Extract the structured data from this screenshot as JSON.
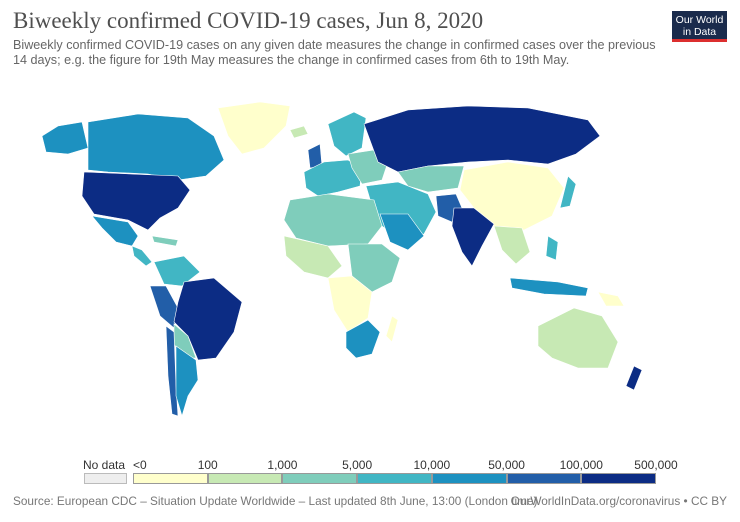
{
  "title": "Biweekly confirmed COVID-19 cases, Jun 8, 2020",
  "subtitle": "Biweekly confirmed COVID-19 cases on any given date measures the change in confirmed cases over the previous 14 days; e.g. the figure for 19th May measures the change in confirmed cases from 6th to 19th May.",
  "logo": {
    "line1": "Our World",
    "line2": "in Data"
  },
  "legend": {
    "no_data_label": "No data",
    "no_data_color": "#eeeeee",
    "bins": [
      {
        "label": "<0",
        "color": "#ffffcc"
      },
      {
        "label": "100",
        "color": "#c7e9b4"
      },
      {
        "label": "1,000",
        "color": "#7fcdbb"
      },
      {
        "label": "5,000",
        "color": "#41b6c4"
      },
      {
        "label": "10,000",
        "color": "#1d91c0"
      },
      {
        "label": "50,000",
        "color": "#225ea8"
      },
      {
        "label": "100,000",
        "color": "#0c2c84"
      },
      {
        "label": "500,000",
        "color": ""
      }
    ]
  },
  "footer": {
    "source": "Source: European CDC – Situation Update Worldwide – Last updated 8th June, 13:00 (London time)",
    "url": "OurWorldInData.org/coronavirus • CC BY"
  }
}
